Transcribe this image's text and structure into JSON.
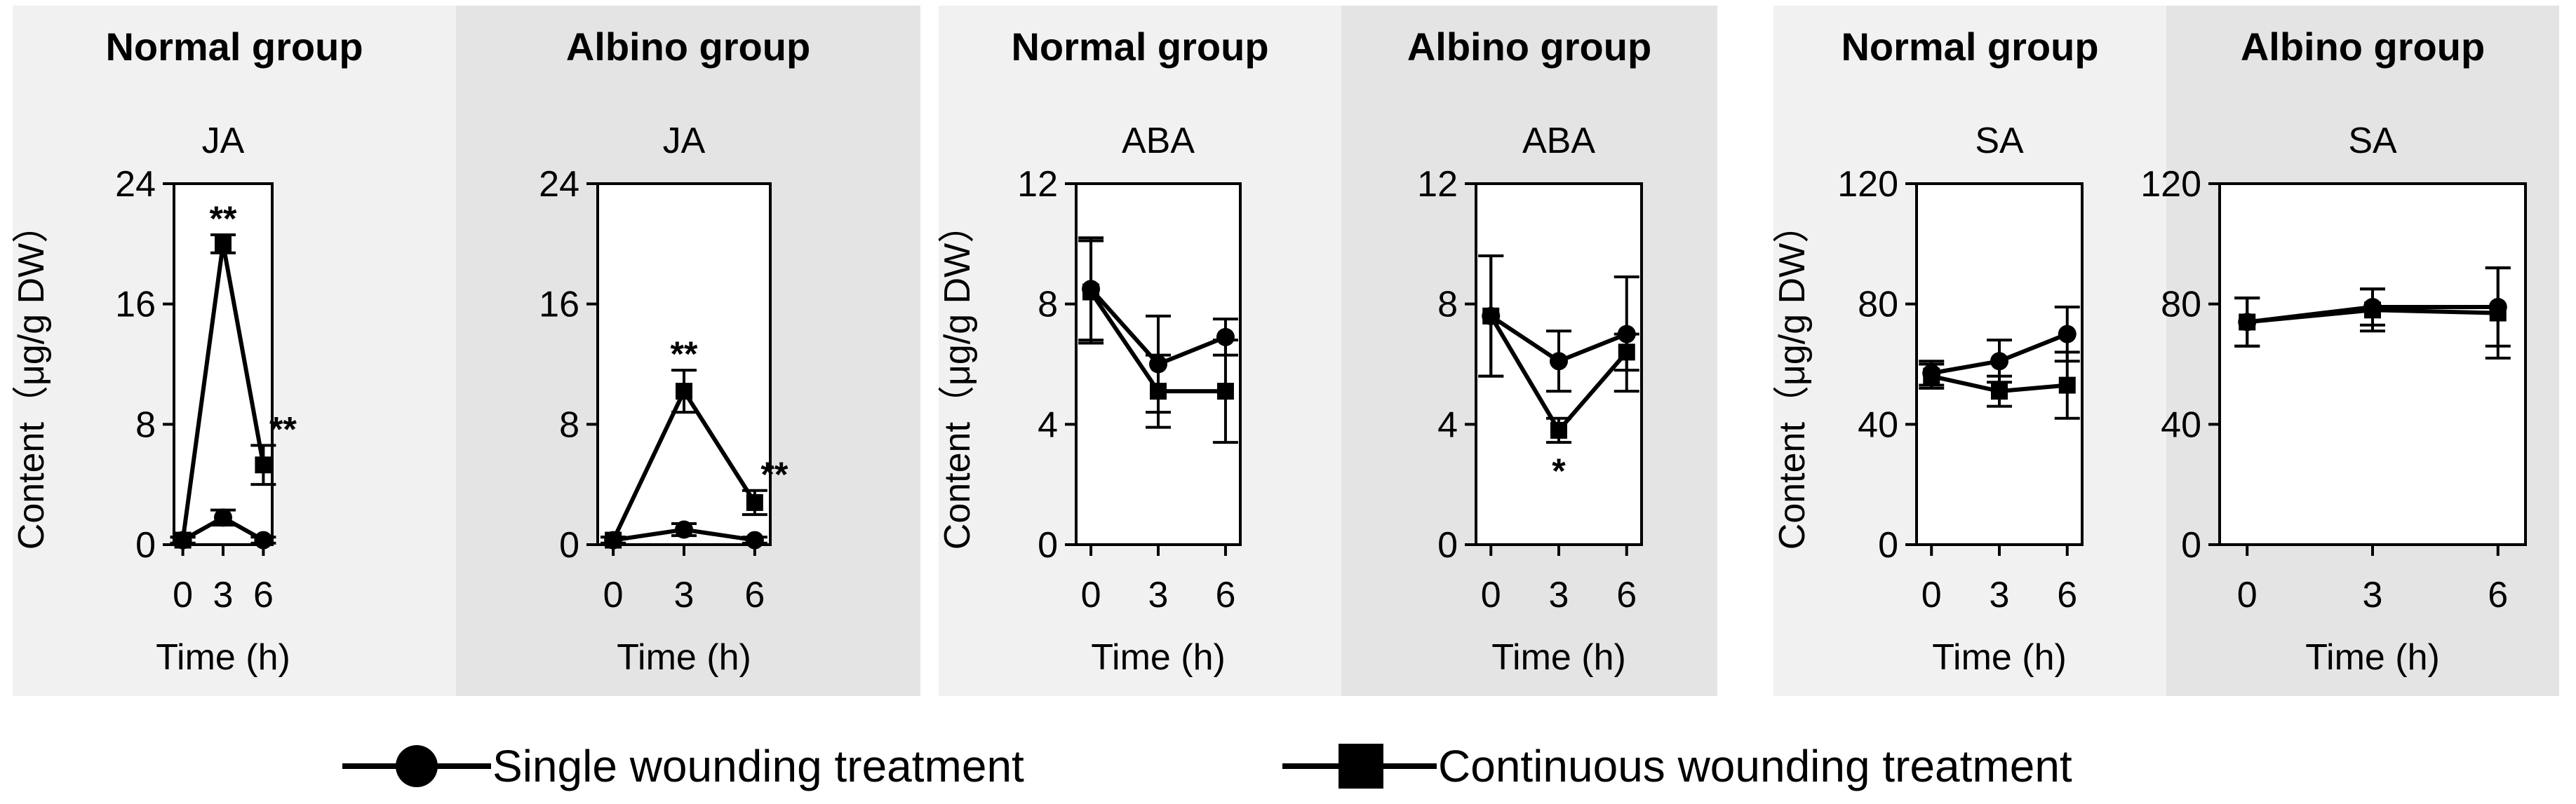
{
  "y_axis_label": "Content（μg/g DW）",
  "x_axis_label": "Time (h)",
  "panel_colors": {
    "normal": "#f1f1f1",
    "albino": "#e4e4e4"
  },
  "legend": {
    "single": "Single wounding treatment",
    "continuous": "Continuous wounding treatment"
  },
  "chart_data": [
    {
      "type": "line",
      "group": "Normal group",
      "title": "JA",
      "x": [
        0,
        3,
        6
      ],
      "ylim": [
        0,
        24
      ],
      "yticks": [
        0,
        8,
        16,
        24
      ],
      "series": [
        {
          "name": "Single wounding treatment",
          "marker": "circle",
          "values": [
            0.3,
            1.8,
            0.3
          ],
          "errors": [
            0.2,
            0.5,
            0.2
          ],
          "sig": [
            "",
            "",
            ""
          ]
        },
        {
          "name": "Continuous wounding treatment",
          "marker": "square",
          "values": [
            0.3,
            20.0,
            5.3
          ],
          "errors": [
            0.2,
            0.6,
            1.3
          ],
          "sig": [
            "",
            "**",
            "**"
          ]
        }
      ]
    },
    {
      "type": "line",
      "group": "Albino group",
      "title": "JA",
      "x": [
        0,
        3,
        6
      ],
      "ylim": [
        0,
        24
      ],
      "yticks": [
        0,
        8,
        16,
        24
      ],
      "series": [
        {
          "name": "Single wounding treatment",
          "marker": "circle",
          "values": [
            0.3,
            1.0,
            0.3
          ],
          "errors": [
            0.2,
            0.4,
            0.2
          ],
          "sig": [
            "",
            "",
            ""
          ]
        },
        {
          "name": "Continuous wounding treatment",
          "marker": "square",
          "values": [
            0.3,
            10.2,
            2.8
          ],
          "errors": [
            0.2,
            1.4,
            0.8
          ],
          "sig": [
            "",
            "**",
            "**"
          ]
        }
      ]
    },
    {
      "type": "line",
      "group": "Normal group",
      "title": "ABA",
      "x": [
        0,
        3,
        6
      ],
      "ylim": [
        0,
        12
      ],
      "yticks": [
        0,
        4,
        8,
        12
      ],
      "series": [
        {
          "name": "Single wounding treatment",
          "marker": "circle",
          "values": [
            8.5,
            6.0,
            6.9
          ],
          "errors": [
            1.7,
            1.6,
            0.6
          ],
          "sig": [
            "",
            "",
            ""
          ]
        },
        {
          "name": "Continuous wounding treatment",
          "marker": "square",
          "values": [
            8.4,
            5.1,
            5.1
          ],
          "errors": [
            1.7,
            1.2,
            1.7
          ],
          "sig": [
            "",
            "",
            ""
          ]
        }
      ]
    },
    {
      "type": "line",
      "group": "Albino group",
      "title": "ABA",
      "x": [
        0,
        3,
        6
      ],
      "ylim": [
        0,
        12
      ],
      "yticks": [
        0,
        4,
        8,
        12
      ],
      "series": [
        {
          "name": "Single wounding treatment",
          "marker": "circle",
          "values": [
            7.6,
            6.1,
            7.0
          ],
          "errors": [
            2.0,
            1.0,
            1.9
          ],
          "sig": [
            "",
            "",
            ""
          ]
        },
        {
          "name": "Continuous wounding treatment",
          "marker": "square",
          "values": [
            7.6,
            3.8,
            6.4
          ],
          "errors": [
            2.0,
            0.4,
            0.6
          ],
          "sig": [
            "",
            "*",
            ""
          ]
        }
      ]
    },
    {
      "type": "line",
      "group": "Normal group",
      "title": "SA",
      "x": [
        0,
        3,
        6
      ],
      "ylim": [
        0,
        120
      ],
      "yticks": [
        0,
        40,
        80,
        120
      ],
      "series": [
        {
          "name": "Single wounding treatment",
          "marker": "circle",
          "values": [
            57,
            61,
            70
          ],
          "errors": [
            4,
            7,
            9
          ],
          "sig": [
            "",
            "",
            ""
          ]
        },
        {
          "name": "Continuous wounding treatment",
          "marker": "square",
          "values": [
            56,
            51,
            53
          ],
          "errors": [
            4,
            5,
            11
          ],
          "sig": [
            "",
            "",
            ""
          ]
        }
      ]
    },
    {
      "type": "line",
      "group": "Albino group",
      "title": "SA",
      "x": [
        0,
        3,
        6
      ],
      "ylim": [
        0,
        120
      ],
      "yticks": [
        0,
        40,
        80,
        120
      ],
      "series": [
        {
          "name": "Single wounding treatment",
          "marker": "circle",
          "values": [
            74,
            79,
            79
          ],
          "errors": [
            8,
            6,
            13
          ],
          "sig": [
            "",
            "",
            ""
          ]
        },
        {
          "name": "Continuous wounding treatment",
          "marker": "square",
          "values": [
            74,
            78,
            77
          ],
          "errors": [
            8,
            7,
            15
          ],
          "sig": [
            "",
            "",
            ""
          ]
        }
      ]
    }
  ]
}
